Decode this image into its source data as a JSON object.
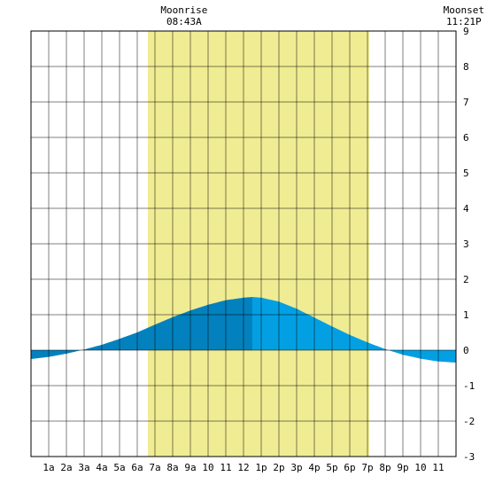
{
  "moon": {
    "rise_label": "Moonrise",
    "rise_time": "08:43A",
    "set_label": "Moonset",
    "set_time": "11:21P"
  },
  "chart_data": {
    "type": "area",
    "title": "",
    "xlabel": "",
    "ylabel": "",
    "x_unit": "hour of day",
    "xlim": [
      0,
      24
    ],
    "ylim": [
      -3,
      9
    ],
    "grid": true,
    "x_tick_labels": [
      "1a",
      "2a",
      "3a",
      "4a",
      "5a",
      "6a",
      "7a",
      "8a",
      "9a",
      "10",
      "11",
      "12",
      "1p",
      "2p",
      "3p",
      "4p",
      "5p",
      "6p",
      "7p",
      "8p",
      "9p",
      "10",
      "11"
    ],
    "y_ticks": [
      -3,
      -2,
      -1,
      0,
      1,
      2,
      3,
      4,
      5,
      6,
      7,
      8,
      9
    ],
    "daylight": {
      "start": 6.6,
      "end": 19.1
    },
    "moonrise_hour": 8.72,
    "moonset_hour": 23.35,
    "x": [
      0,
      1,
      2,
      3,
      4,
      5,
      6,
      7,
      8,
      9,
      10,
      11,
      12,
      12.5,
      13,
      14,
      15,
      16,
      17,
      18,
      19,
      20,
      21,
      22,
      23,
      24
    ],
    "y": [
      -0.25,
      -0.19,
      -0.1,
      0.02,
      0.15,
      0.32,
      0.5,
      0.72,
      0.93,
      1.12,
      1.28,
      1.41,
      1.48,
      1.5,
      1.48,
      1.37,
      1.17,
      0.92,
      0.67,
      0.43,
      0.22,
      0.03,
      -0.13,
      -0.24,
      -0.32,
      -0.35
    ],
    "colors": {
      "daylight": "#f0ec93",
      "tide_rising": "#0281be",
      "tide_falling": "#02a0e3",
      "grid": "#000000"
    }
  }
}
